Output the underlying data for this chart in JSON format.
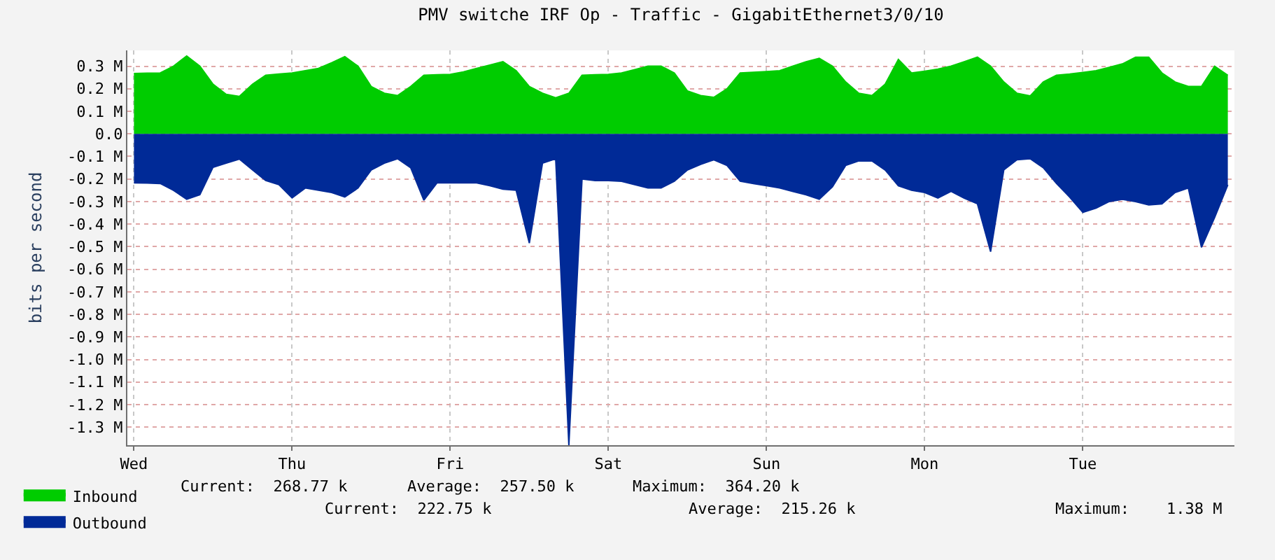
{
  "chart_data": {
    "type": "area",
    "title": "PMV switche IRF Op - Traffic - GigabitEthernet3/0/10",
    "ylabel": "bits per second",
    "categories": [
      "Wed",
      null,
      null,
      null,
      null,
      null,
      null,
      null,
      null,
      null,
      null,
      null,
      "Thu",
      null,
      null,
      null,
      null,
      null,
      null,
      null,
      null,
      null,
      null,
      null,
      "Fri",
      null,
      null,
      null,
      null,
      null,
      null,
      null,
      null,
      null,
      null,
      null,
      "Sat",
      null,
      null,
      null,
      null,
      null,
      null,
      null,
      null,
      null,
      null,
      null,
      "Sun",
      null,
      null,
      null,
      null,
      null,
      null,
      null,
      null,
      null,
      null,
      null,
      "Mon",
      null,
      null,
      null,
      null,
      null,
      null,
      null,
      null,
      null,
      null,
      null,
      "Tue",
      null,
      null,
      null,
      null,
      null,
      null,
      null,
      null,
      null,
      null,
      null
    ],
    "series": [
      {
        "name": "Inbound",
        "color": "#00cc00",
        "values": [
          0.268,
          0.269,
          0.27,
          0.3,
          0.345,
          0.3,
          0.22,
          0.175,
          0.166,
          0.22,
          0.26,
          0.265,
          0.27,
          0.28,
          0.29,
          0.315,
          0.342,
          0.3,
          0.21,
          0.18,
          0.17,
          0.21,
          0.26,
          0.262,
          0.264,
          0.275,
          0.29,
          0.305,
          0.32,
          0.28,
          0.21,
          0.18,
          0.16,
          0.18,
          0.26,
          0.262,
          0.264,
          0.27,
          0.285,
          0.3,
          0.3,
          0.27,
          0.19,
          0.17,
          0.162,
          0.2,
          0.27,
          0.273,
          0.276,
          0.28,
          0.3,
          0.32,
          0.335,
          0.3,
          0.23,
          0.18,
          0.17,
          0.22,
          0.33,
          0.27,
          0.278,
          0.287,
          0.3,
          0.32,
          0.34,
          0.3,
          0.23,
          0.18,
          0.168,
          0.23,
          0.26,
          0.265,
          0.272,
          0.28,
          0.295,
          0.31,
          0.34,
          0.34,
          0.27,
          0.23,
          0.21,
          0.21,
          0.3,
          0.26
        ]
      },
      {
        "name": "Outbound",
        "color": "#002a97",
        "values": [
          -0.217,
          -0.218,
          -0.22,
          -0.25,
          -0.29,
          -0.27,
          -0.148,
          -0.13,
          -0.112,
          -0.16,
          -0.207,
          -0.225,
          -0.284,
          -0.24,
          -0.25,
          -0.26,
          -0.28,
          -0.24,
          -0.16,
          -0.13,
          -0.11,
          -0.15,
          -0.294,
          -0.217,
          -0.217,
          -0.217,
          -0.217,
          -0.23,
          -0.245,
          -0.25,
          -0.484,
          -0.13,
          -0.11,
          -1.38,
          -0.2,
          -0.207,
          -0.207,
          -0.21,
          -0.225,
          -0.24,
          -0.24,
          -0.21,
          -0.16,
          -0.135,
          -0.115,
          -0.14,
          -0.21,
          -0.22,
          -0.23,
          -0.24,
          -0.255,
          -0.27,
          -0.29,
          -0.235,
          -0.14,
          -0.12,
          -0.12,
          -0.16,
          -0.23,
          -0.25,
          -0.26,
          -0.284,
          -0.255,
          -0.285,
          -0.31,
          -0.522,
          -0.16,
          -0.115,
          -0.11,
          -0.15,
          -0.22,
          -0.28,
          -0.348,
          -0.329,
          -0.3,
          -0.29,
          -0.3,
          -0.315,
          -0.31,
          -0.26,
          -0.24,
          -0.503,
          -0.37,
          -0.226
        ]
      }
    ],
    "ylim": [
      -1.38,
      0.37
    ],
    "yticks": [
      {
        "value": 0.3,
        "label": "0.3 M"
      },
      {
        "value": 0.2,
        "label": "0.2 M"
      },
      {
        "value": 0.1,
        "label": "0.1 M"
      },
      {
        "value": 0,
        "label": "0.0"
      },
      {
        "value": -0.1,
        "label": "-0.1 M"
      },
      {
        "value": -0.2,
        "label": "-0.2 M"
      },
      {
        "value": -0.3,
        "label": "-0.3 M"
      },
      {
        "value": -0.4,
        "label": "-0.4 M"
      },
      {
        "value": -0.5,
        "label": "-0.5 M"
      },
      {
        "value": -0.6,
        "label": "-0.6 M"
      },
      {
        "value": -0.7,
        "label": "-0.7 M"
      },
      {
        "value": -0.8,
        "label": "-0.8 M"
      },
      {
        "value": -0.9,
        "label": "-0.9 M"
      },
      {
        "value": -1.0,
        "label": "-1.0 M"
      },
      {
        "value": -1.1,
        "label": "-1.1 M"
      },
      {
        "value": -1.2,
        "label": "-1.2 M"
      },
      {
        "value": -1.3,
        "label": "-1.3 M"
      }
    ],
    "grid": true,
    "legend": "bottom left",
    "annotations": [
      "Current:  268.77 k",
      "Average:  257.50 k",
      "Maximum:  364.20 k",
      "Current:  222.75 k",
      "Average:  215.26 k",
      "Maximum:    1.38 M"
    ]
  }
}
